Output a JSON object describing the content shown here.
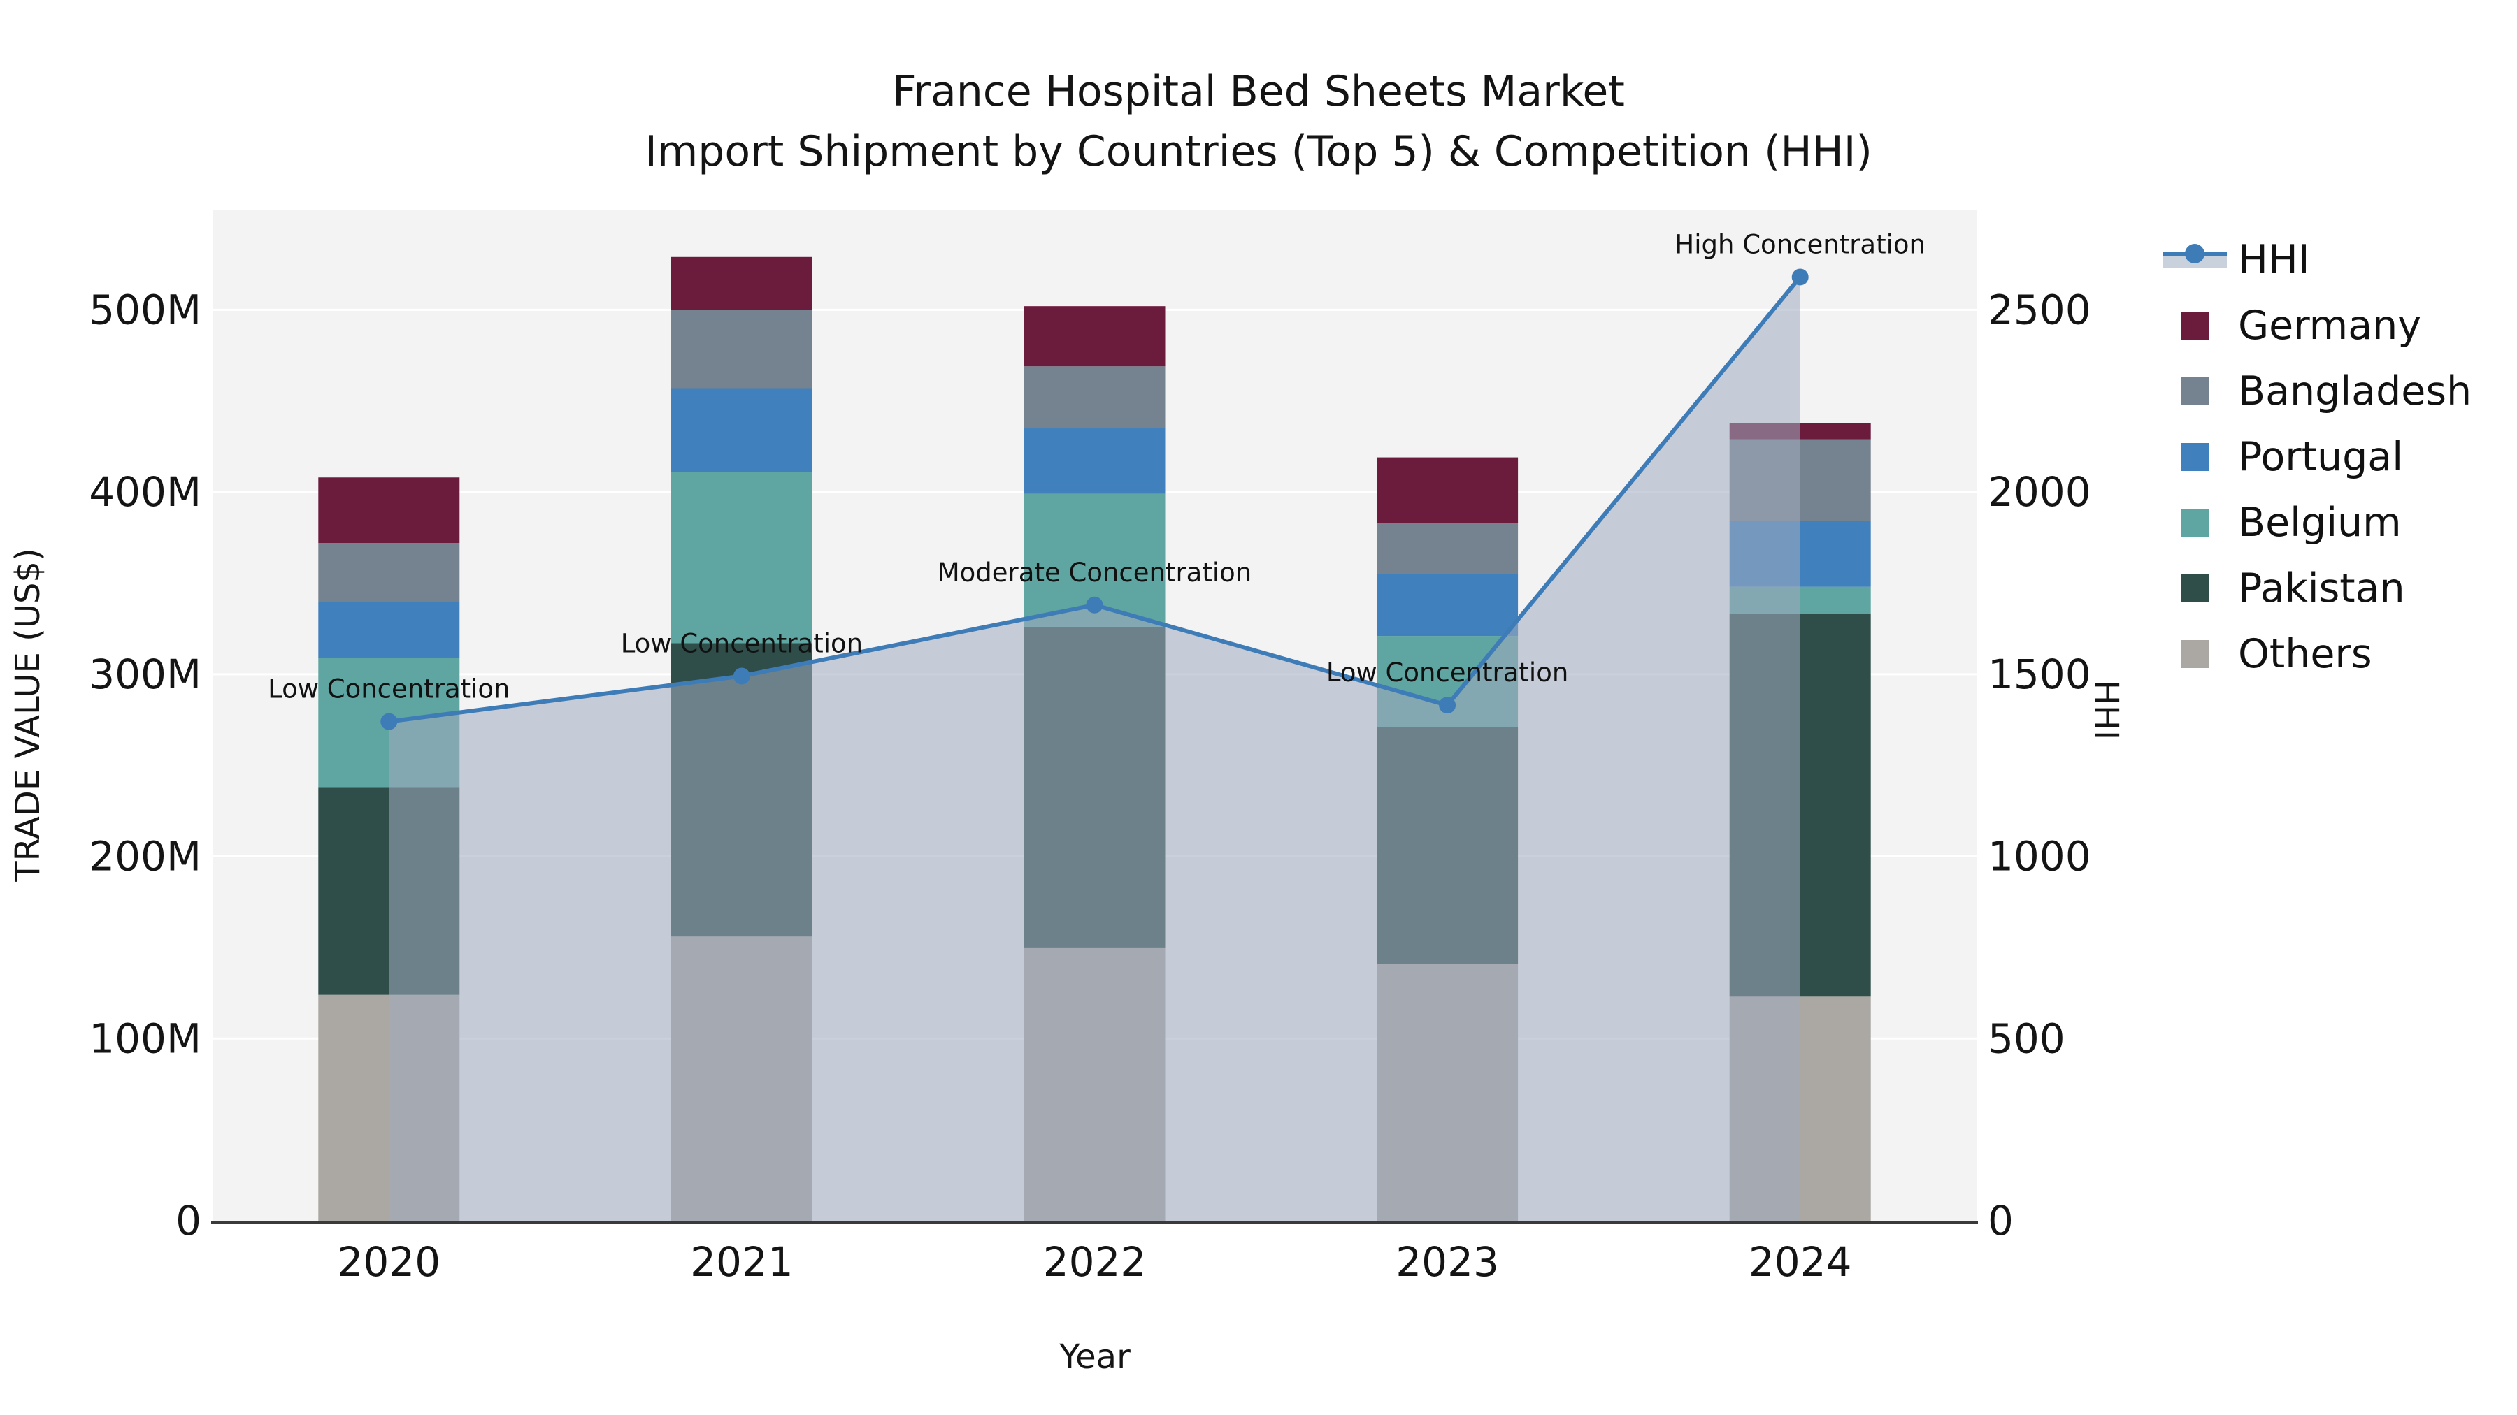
{
  "title": {
    "line1": "France Hospital Bed Sheets Market",
    "line2": "Import Shipment by Countries (Top 5) & Competition (HHI)"
  },
  "axis": {
    "left_label": "TRADE VALUE (US$)",
    "right_label": "HHI",
    "x_label": "Year",
    "left_ticks": [
      "0",
      "100M",
      "200M",
      "300M",
      "400M",
      "500M"
    ],
    "left_tick_values": [
      0,
      100,
      200,
      300,
      400,
      500
    ],
    "right_ticks": [
      "0",
      "500",
      "1000",
      "1500",
      "2000",
      "2500"
    ],
    "right_tick_values": [
      0,
      500,
      1000,
      1500,
      2000,
      2500
    ],
    "left_max": 555,
    "right_max": 2775
  },
  "legend": {
    "items": [
      {
        "label": "HHI",
        "type": "line",
        "color": "#3E7CB8",
        "band": "#C9D1DC"
      },
      {
        "label": "Germany",
        "type": "swatch",
        "color": "#6B1C3D"
      },
      {
        "label": "Bangladesh",
        "type": "swatch",
        "color": "#75828F"
      },
      {
        "label": "Portugal",
        "type": "swatch",
        "color": "#4080BC"
      },
      {
        "label": "Belgium",
        "type": "swatch",
        "color": "#5FA5A1"
      },
      {
        "label": "Pakistan",
        "type": "swatch",
        "color": "#2F4E49"
      },
      {
        "label": "Others",
        "type": "swatch",
        "color": "#ABA7A3"
      }
    ]
  },
  "colors": {
    "figure_bg": "#FFFFFF",
    "plot_bg": "#F3F3F4",
    "grid": "#FFFFFF",
    "spine": "#3A3A3A",
    "text": "#141414",
    "hhi_line": "#3E7CB8",
    "hhi_area": "rgba(160,172,192,0.55)"
  },
  "chart_data": {
    "type": "stacked-bar+line",
    "title": "France Hospital Bed Sheets Market — Import Shipment by Countries (Top 5) & Competition (HHI)",
    "xlabel": "Year",
    "ylabel_left": "TRADE VALUE (US$)",
    "ylabel_right": "HHI",
    "unit": "US$ millions (left axis), HHI index (right axis)",
    "categories": [
      "2020",
      "2021",
      "2022",
      "2023",
      "2024"
    ],
    "stack_order_bottom_to_top": [
      "Others",
      "Pakistan",
      "Belgium",
      "Portugal",
      "Bangladesh",
      "Germany"
    ],
    "series": [
      {
        "name": "Others",
        "color": "#ABA7A3",
        "values": [
          124,
          156,
          150,
          141,
          123
        ]
      },
      {
        "name": "Pakistan",
        "color": "#2F4E49",
        "values": [
          114,
          161,
          176,
          130,
          210
        ]
      },
      {
        "name": "Belgium",
        "color": "#5FA5A1",
        "values": [
          71,
          94,
          73,
          50,
          15
        ]
      },
      {
        "name": "Portugal",
        "color": "#4080BC",
        "values": [
          31,
          46,
          36,
          34,
          36
        ]
      },
      {
        "name": "Bangladesh",
        "color": "#75828F",
        "values": [
          32,
          43,
          34,
          28,
          45
        ]
      },
      {
        "name": "Germany",
        "color": "#6B1C3D",
        "values": [
          36,
          29,
          33,
          36,
          9
        ]
      }
    ],
    "bar_totals_M": [
      408,
      529,
      502,
      419,
      438
    ],
    "hhi": {
      "name": "HHI",
      "color": "#3E7CB8",
      "area_fill": "rgba(160,172,192,0.55)",
      "values": [
        1370,
        1495,
        1690,
        1415,
        2590
      ]
    },
    "annotations": [
      {
        "x": "2020",
        "label": "Low Concentration"
      },
      {
        "x": "2021",
        "label": "Low Concentration"
      },
      {
        "x": "2022",
        "label": "Moderate Concentration"
      },
      {
        "x": "2023",
        "label": "Low Concentration"
      },
      {
        "x": "2024",
        "label": "High Concentration"
      }
    ],
    "ylim_left_M": [
      0,
      555
    ],
    "ylim_right": [
      0,
      2775
    ],
    "grid": "horizontal gridlines, white, drawn below bars",
    "legend_position": "right, outside plot"
  }
}
